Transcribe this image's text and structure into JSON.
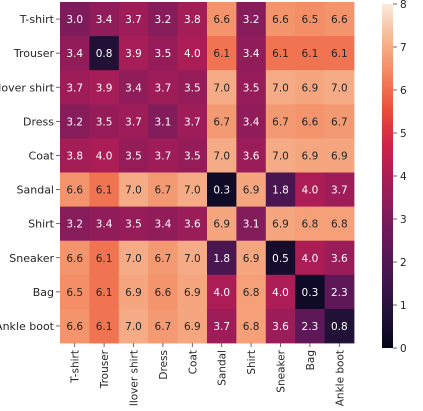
{
  "chart_data": {
    "type": "heatmap",
    "title": "",
    "xlabel": "",
    "ylabel": "",
    "x_categories": [
      "T-shirt",
      "Trouser",
      "Pullover shirt",
      "Dress",
      "Coat",
      "Sandal",
      "Shirt",
      "Sneaker",
      "Bag",
      "Ankle boot"
    ],
    "y_categories": [
      "T-shirt",
      "Trouser",
      "Pullover shirt",
      "Dress",
      "Coat",
      "Sandal",
      "Shirt",
      "Sneaker",
      "Bag",
      "Ankle boot"
    ],
    "values": [
      [
        3.0,
        3.4,
        3.7,
        3.2,
        3.8,
        6.6,
        3.2,
        6.6,
        6.5,
        6.6
      ],
      [
        3.4,
        0.8,
        3.9,
        3.5,
        4.0,
        6.1,
        3.4,
        6.1,
        6.1,
        6.1
      ],
      [
        3.7,
        3.9,
        3.4,
        3.7,
        3.5,
        7.0,
        3.5,
        7.0,
        6.9,
        7.0
      ],
      [
        3.2,
        3.5,
        3.7,
        3.1,
        3.7,
        6.7,
        3.4,
        6.7,
        6.6,
        6.7
      ],
      [
        3.8,
        4.0,
        3.5,
        3.7,
        3.5,
        7.0,
        3.6,
        7.0,
        6.9,
        6.9
      ],
      [
        6.6,
        6.1,
        7.0,
        6.7,
        7.0,
        0.3,
        6.9,
        1.8,
        4.0,
        3.7
      ],
      [
        3.2,
        3.4,
        3.5,
        3.4,
        3.6,
        6.9,
        3.1,
        6.9,
        6.8,
        6.8
      ],
      [
        6.6,
        6.1,
        7.0,
        6.7,
        7.0,
        1.8,
        6.9,
        0.5,
        4.0,
        3.6
      ],
      [
        6.5,
        6.1,
        6.9,
        6.6,
        6.9,
        4.0,
        6.8,
        4.0,
        0.3,
        2.3
      ],
      [
        6.6,
        6.1,
        7.0,
        6.7,
        6.9,
        3.7,
        6.8,
        3.6,
        2.3,
        0.8
      ]
    ],
    "colorbar": {
      "range": [
        0,
        8
      ],
      "ticks": [
        "0",
        "1",
        "2",
        "3",
        "4",
        "5",
        "6",
        "7",
        "8"
      ]
    },
    "colormap": "rocket",
    "grid": false,
    "legend": "right"
  }
}
